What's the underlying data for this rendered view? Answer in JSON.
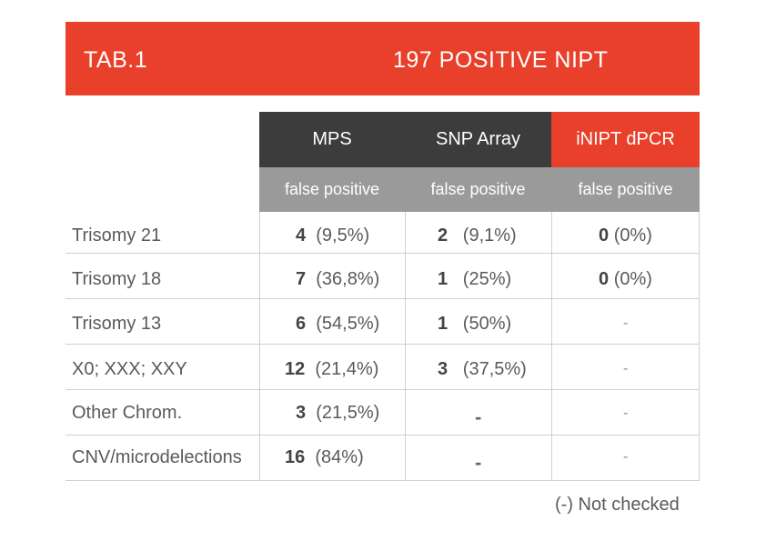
{
  "banner": {
    "tab_label": "TAB.1",
    "title": "197 POSITIVE NIPT"
  },
  "columns": [
    {
      "label": "MPS",
      "sub": "false positive"
    },
    {
      "label": "SNP Array",
      "sub": "false positive"
    },
    {
      "label": "iNIPT dPCR",
      "sub": "false positive"
    }
  ],
  "rows": [
    {
      "label": "Trisomy 21",
      "mps": {
        "n": "4",
        "p": "(9,5%)"
      },
      "snp": {
        "n": "2",
        "p": "(9,1%)"
      },
      "dpcr": {
        "n": "0",
        "p": "(0%)"
      }
    },
    {
      "label": "Trisomy 18",
      "mps": {
        "n": "7",
        "p": "(36,8%)"
      },
      "snp": {
        "n": "1",
        "p": "(25%)"
      },
      "dpcr": {
        "n": "0",
        "p": "(0%)"
      }
    },
    {
      "label": "Trisomy 13",
      "mps": {
        "n": "6",
        "p": "(54,5%)"
      },
      "snp": {
        "n": "1",
        "p": "(50%)"
      },
      "dpcr": {
        "dash": "-"
      }
    },
    {
      "label": "X0; XXX; XXY",
      "mps": {
        "n": "12",
        "p": "(21,4%)"
      },
      "snp": {
        "n": "3",
        "p": "(37,5%)"
      },
      "dpcr": {
        "dash": "-"
      }
    },
    {
      "label": "Other Chrom.",
      "mps": {
        "n": "3",
        "p": "(21,5%)"
      },
      "snp": {
        "dash": "-"
      },
      "dpcr": {
        "dash": "-"
      }
    },
    {
      "label": "CNV/microdelections",
      "mps": {
        "n": "16",
        "p": "(84%)"
      },
      "snp": {
        "dash": "-"
      },
      "dpcr": {
        "dash": "-"
      }
    }
  ],
  "footnote": "(-) Not checked",
  "colors": {
    "accent": "#e8402a",
    "header_dark": "#3c3c3c",
    "subheader_gray": "#9a9a9a"
  }
}
